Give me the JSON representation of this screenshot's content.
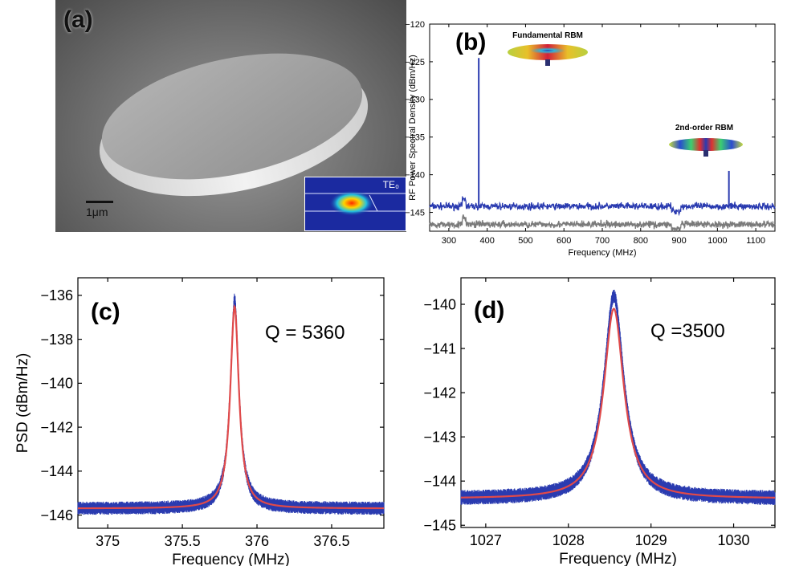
{
  "panels": {
    "a": {
      "label": "(a)",
      "scale_bar": "1μm",
      "inset_label": "TE₀"
    },
    "b": {
      "label": "(b)",
      "annotation_1": "Fundamental RBM",
      "annotation_2": "2nd-order RBM"
    },
    "c": {
      "label": "(c)",
      "q_text": "Q = 5360"
    },
    "d": {
      "label": "(d)",
      "q_text": "Q =3500"
    }
  },
  "chart_data": [
    {
      "type": "line",
      "panel": "b",
      "xlabel": "Frequency (MHz)",
      "ylabel": "RF Power Spectral Density (dBm/Hz)",
      "xlim": [
        250,
        1150
      ],
      "ylim": [
        -147.5,
        -120
      ],
      "x_ticks": [
        300,
        400,
        500,
        600,
        700,
        800,
        900,
        1000,
        1100
      ],
      "y_ticks": [
        -120,
        -125,
        -130,
        -135,
        -140,
        -145
      ],
      "series": [
        {
          "color": "#2a3bb0",
          "baseline": -144.2,
          "peaks": [
            {
              "x": 378,
              "y": -124.5
            },
            {
              "x": 1030,
              "y": -139.5
            }
          ]
        },
        {
          "color": "#7a7a7a",
          "baseline": -146.6
        }
      ]
    },
    {
      "type": "line",
      "panel": "c",
      "xlabel": "Frequency (MHz)",
      "ylabel": "PSD (dBm/Hz)",
      "xlim": [
        374.8,
        376.85
      ],
      "ylim": [
        -146.6,
        -135.2
      ],
      "x_ticks": [
        375,
        375.5,
        376,
        376.5
      ],
      "y_ticks": [
        -136,
        -138,
        -140,
        -142,
        -144,
        -146
      ],
      "series": [
        {
          "color": "#2a3bb0",
          "kind": "measured",
          "center": 375.85,
          "peak": -136.2,
          "baseline": -145.7,
          "half_width": 0.035
        },
        {
          "color": "#e04a4a",
          "kind": "fit",
          "center": 375.85,
          "peak": -136.5,
          "baseline": -145.7,
          "half_width": 0.035
        }
      ]
    },
    {
      "type": "line",
      "panel": "d",
      "xlabel": "Frequency (MHz)",
      "ylabel": "",
      "xlim": [
        1026.7,
        1030.5
      ],
      "ylim": [
        -145.05,
        -139.4
      ],
      "x_ticks": [
        1027,
        1028,
        1029,
        1030
      ],
      "y_ticks": [
        -140,
        -141,
        -142,
        -143,
        -144,
        -145
      ],
      "series": [
        {
          "color": "#2a3bb0",
          "kind": "measured",
          "center": 1028.55,
          "peak": -139.8,
          "baseline": -144.4,
          "half_width": 0.147
        },
        {
          "color": "#e04a4a",
          "kind": "fit",
          "center": 1028.55,
          "peak": -140.1,
          "baseline": -144.4,
          "half_width": 0.147
        }
      ]
    }
  ]
}
